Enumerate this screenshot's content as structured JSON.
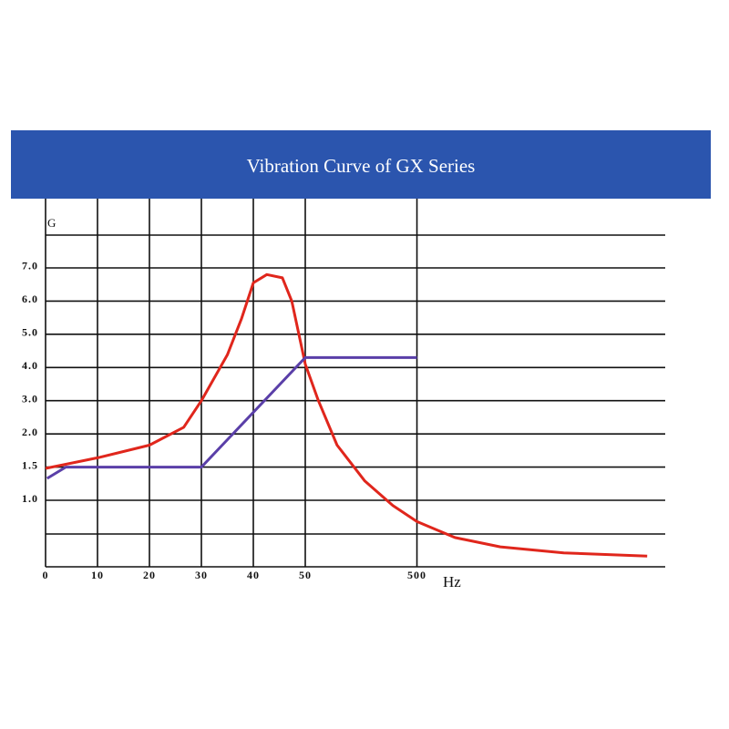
{
  "chart_data": {
    "type": "line",
    "title": "Vibration Curve of GX Series",
    "y_label": "G",
    "x_label": "Hz",
    "xlim": [
      0,
      1000
    ],
    "xticks": [
      0,
      10,
      20,
      30,
      40,
      50,
      500
    ],
    "ylim": [
      0,
      8
    ],
    "yticks": [
      {
        "value": 1,
        "label": "1.0"
      },
      1.5,
      {
        "value": 2,
        "label": "2.0"
      },
      {
        "value": 3,
        "label": "3.0"
      },
      {
        "value": 4,
        "label": "4.0"
      },
      {
        "value": 5,
        "label": "5.0"
      },
      {
        "value": 6,
        "label": "6.0"
      },
      {
        "value": 7,
        "label": "7.0"
      }
    ],
    "grid": true,
    "series": [
      {
        "color": "#e0261c",
        "x": [
          0,
          10,
          20,
          26.6,
          30,
          35,
          37.7,
          40,
          42.6,
          45.6,
          47.4,
          50,
          103,
          178,
          290,
          403,
          500,
          577,
          669,
          798,
          967
        ],
        "values": [
          1.48,
          1.64,
          1.83,
          2.2,
          3.0,
          4.38,
          5.46,
          6.55,
          6.8,
          6.7,
          6.0,
          4.1,
          3.0,
          1.83,
          1.29,
          0.92,
          0.68,
          0.44,
          0.3,
          0.21,
          0.16
        ]
      },
      {
        "color": "#5a3fa8",
        "x": [
          0.3,
          3.9,
          30,
          50,
          500
        ],
        "values": [
          1.33,
          1.5,
          1.5,
          4.3,
          4.3
        ]
      }
    ]
  }
}
